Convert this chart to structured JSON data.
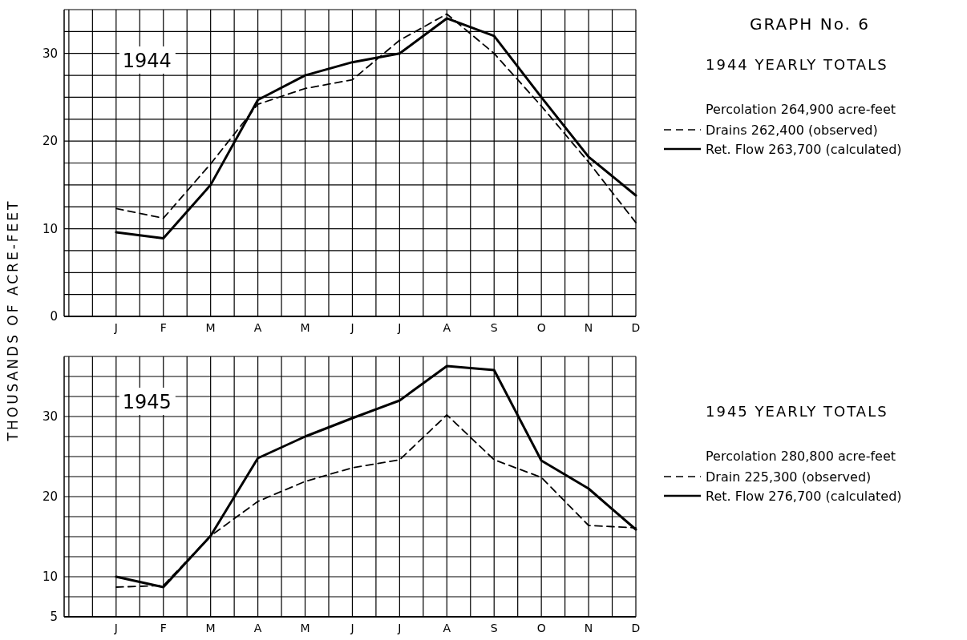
{
  "chart_data": [
    {
      "type": "line",
      "ylabel": "THOUSANDS OF ACRE-FEET",
      "legend_title": "1944 YEARLY TOTALS",
      "annotations": [
        "1944",
        "Percolation 264,900 acre-feet",
        "GRAPH No. 6"
      ],
      "categories": [
        "J",
        "F",
        "M",
        "A",
        "M",
        "J",
        "J",
        "A",
        "S",
        "O",
        "N",
        "D"
      ],
      "series": [
        {
          "name": "Drains 262,400 (observed)",
          "color": "#000000",
          "line_style": "dashed",
          "values": [
            12.3,
            11.2,
            17.4,
            24.2,
            26,
            27,
            31.5,
            34.5,
            30,
            24,
            17.6,
            10.7
          ]
        },
        {
          "name": "Ret. Flow 263,700 (calculated)",
          "color": "#000000",
          "line_style": "solid",
          "values": [
            9.6,
            8.9,
            15,
            24.7,
            27.5,
            29,
            30,
            34,
            32,
            25,
            18.2,
            13.8
          ]
        }
      ],
      "ylim": [
        0,
        35
      ],
      "yticks": [
        0,
        {
          "value": 2.5,
          "label": null
        },
        {
          "value": 5,
          "label": null
        },
        {
          "value": 7.5,
          "label": null
        },
        10,
        {
          "value": 12.5,
          "label": null
        },
        {
          "value": 15,
          "label": null
        },
        {
          "value": 17.5,
          "label": null
        },
        20,
        {
          "value": 22.5,
          "label": null
        },
        {
          "value": 25,
          "label": null
        },
        {
          "value": 27.5,
          "label": null
        },
        30,
        {
          "value": 32.5,
          "label": null
        },
        {
          "value": 35,
          "label": null
        }
      ],
      "grid": true,
      "legend": "right"
    },
    {
      "type": "line",
      "legend_title": "1945 YEARLY TOTALS",
      "annotations": [
        "1945",
        "Percolation 280,800 acre-feet"
      ],
      "categories": [
        "J",
        "F",
        "M",
        "A",
        "M",
        "J",
        "J",
        "A",
        "S",
        "O",
        "N",
        "D"
      ],
      "series": [
        {
          "name": "Drain 225,300 (observed)",
          "color": "#000000",
          "line_style": "dashed",
          "values": [
            8.7,
            8.9,
            15.1,
            19.4,
            21.9,
            23.6,
            24.6,
            30.2,
            24.6,
            22.4,
            16.4,
            16.1
          ]
        },
        {
          "name": "Ret. Flow 276,700 (calculated)",
          "color": "#000000",
          "line_style": "solid",
          "values": [
            10,
            8.7,
            15.1,
            24.8,
            27.5,
            29.8,
            32,
            36.3,
            35.8,
            24.5,
            21,
            15.9
          ]
        }
      ],
      "ylim": [
        5,
        37.5
      ],
      "yticks": [
        5,
        {
          "value": 7.5,
          "label": null
        },
        10,
        {
          "value": 12.5,
          "label": null
        },
        {
          "value": 15,
          "label": null
        },
        {
          "value": 17.5,
          "label": null
        },
        20,
        {
          "value": 22.5,
          "label": null
        },
        {
          "value": 25,
          "label": null
        },
        {
          "value": 27.5,
          "label": null
        },
        30,
        {
          "value": 32.5,
          "label": null
        },
        {
          "value": 35,
          "label": null
        },
        {
          "value": 37.5,
          "label": null
        }
      ],
      "grid": true,
      "legend": "right"
    }
  ]
}
